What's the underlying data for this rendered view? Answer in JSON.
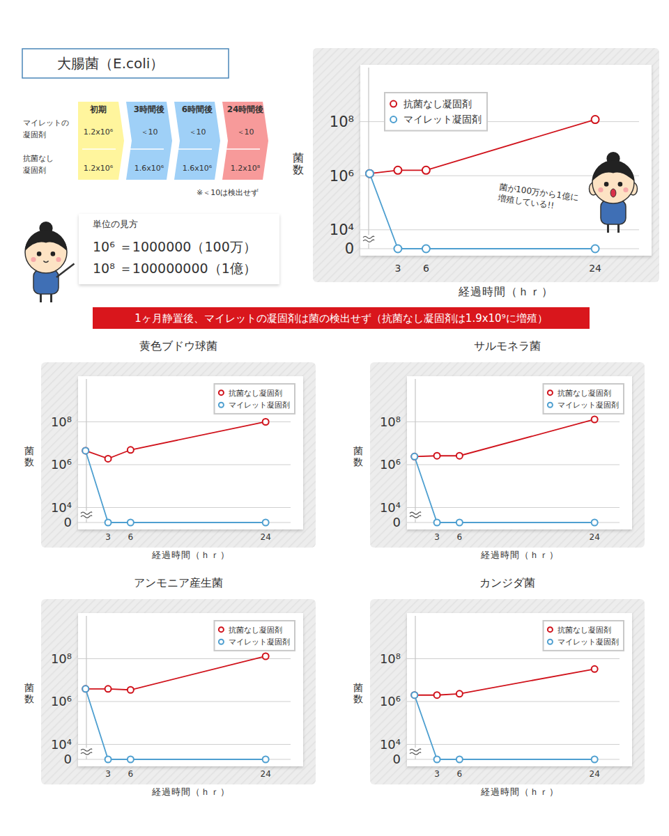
{
  "chart_data": [
    {
      "type": "line",
      "title": "大腸菌（E.coli）",
      "x_label": "経過時間（ｈｒ）",
      "y_label": "菌数",
      "x": [
        0,
        3,
        6,
        24
      ],
      "xlim": [
        -1,
        30
      ],
      "xticks": [
        3,
        6,
        24
      ],
      "ylim": [
        0,
        10000000000
      ],
      "yticks": [
        0,
        {
          "value": 10000,
          "label": "10⁴"
        },
        {
          "value": 1000000,
          "label": "10⁶"
        },
        {
          "value": 100000000,
          "label": "10⁸"
        }
      ],
      "log": "y",
      "grid": true,
      "legend": "upper left",
      "series": [
        {
          "name": "抗菌なし凝固剤",
          "color": "#d0121b",
          "marker": "circle",
          "values": [
            1200000,
            1600000,
            1600000,
            120000000
          ]
        },
        {
          "name": "マイレット凝固剤",
          "color": "#4e9fd0",
          "marker": "circle",
          "values": [
            1200000,
            0,
            0,
            0
          ]
        }
      ],
      "annotations": [
        {
          "text": "菌が100万から1億に増殖している!!"
        }
      ]
    },
    {
      "type": "line",
      "title": "黄色ブドウ球菌",
      "x_label": "経過時間（ｈｒ）",
      "y_label": "菌数",
      "x": [
        0,
        3,
        6,
        24
      ],
      "xlim": [
        -1,
        29
      ],
      "xticks": [
        3,
        6,
        24
      ],
      "ylim": [
        0,
        10000000000
      ],
      "yticks": [
        0,
        {
          "value": 10000,
          "label": "10⁴"
        },
        {
          "value": 1000000,
          "label": "10⁶"
        },
        {
          "value": 100000000,
          "label": "10⁸"
        }
      ],
      "log": "y",
      "grid": true,
      "legend": "upper right",
      "series": [
        {
          "name": "抗菌なし凝固剤",
          "color": "#d0121b",
          "marker": "circle",
          "values": [
            4500000,
            1900000,
            4900000,
            100000000
          ]
        },
        {
          "name": "マイレット凝固剤",
          "color": "#4e9fd0",
          "marker": "circle",
          "values": [
            4500000,
            0,
            0,
            0
          ]
        }
      ]
    },
    {
      "type": "line",
      "title": "サルモネラ菌",
      "x_label": "経過時間（ｈｒ）",
      "y_label": "菌数",
      "x": [
        0,
        3,
        6,
        24
      ],
      "xlim": [
        -1,
        29
      ],
      "xticks": [
        3,
        6,
        24
      ],
      "ylim": [
        0,
        10000000000
      ],
      "yticks": [
        0,
        {
          "value": 10000,
          "label": "10⁴"
        },
        {
          "value": 1000000,
          "label": "10⁶"
        },
        {
          "value": 100000000,
          "label": "10⁸"
        }
      ],
      "log": "y",
      "grid": true,
      "legend": "upper right",
      "series": [
        {
          "name": "抗菌なし凝固剤",
          "color": "#d0121b",
          "marker": "circle",
          "values": [
            2400000,
            2600000,
            2600000,
            130000000
          ]
        },
        {
          "name": "マイレット凝固剤",
          "color": "#4e9fd0",
          "marker": "circle",
          "values": [
            2400000,
            0,
            0,
            0
          ]
        }
      ]
    },
    {
      "type": "line",
      "title": "アンモニア産生菌",
      "x_label": "経過時間（ｈｒ）",
      "y_label": "菌数",
      "x": [
        0,
        3,
        6,
        24
      ],
      "xlim": [
        -1,
        29
      ],
      "xticks": [
        3,
        6,
        24
      ],
      "ylim": [
        0,
        10000000000
      ],
      "yticks": [
        0,
        {
          "value": 10000,
          "label": "10⁴"
        },
        {
          "value": 1000000,
          "label": "10⁶"
        },
        {
          "value": 100000000,
          "label": "10⁸"
        }
      ],
      "log": "y",
      "grid": true,
      "legend": "upper right",
      "series": [
        {
          "name": "抗菌なし凝固剤",
          "color": "#d0121b",
          "marker": "circle",
          "values": [
            3900000,
            3900000,
            3500000,
            130000000
          ]
        },
        {
          "name": "マイレット凝固剤",
          "color": "#4e9fd0",
          "marker": "circle",
          "values": [
            3900000,
            0,
            0,
            0
          ]
        }
      ]
    },
    {
      "type": "line",
      "title": "カンジダ菌",
      "x_label": "経過時間（ｈｒ）",
      "y_label": "菌数",
      "x": [
        0,
        3,
        6,
        24
      ],
      "xlim": [
        -1,
        29
      ],
      "xticks": [
        3,
        6,
        24
      ],
      "ylim": [
        0,
        10000000000
      ],
      "yticks": [
        0,
        {
          "value": 10000,
          "label": "10⁴"
        },
        {
          "value": 1000000,
          "label": "10⁶"
        },
        {
          "value": 100000000,
          "label": "10⁸"
        }
      ],
      "log": "y",
      "grid": true,
      "legend": "upper right",
      "series": [
        {
          "name": "抗菌なし凝固剤",
          "color": "#d0121b",
          "marker": "circle",
          "values": [
            2000000,
            2000000,
            2300000,
            33000000
          ]
        },
        {
          "name": "マイレット凝固剤",
          "color": "#4e9fd0",
          "marker": "circle",
          "values": [
            2000000,
            0,
            0,
            0
          ]
        }
      ]
    }
  ],
  "table": {
    "columns": [
      "初期",
      "3時間後",
      "6時間後",
      "24時間後"
    ],
    "rows": [
      {
        "label_lines": [
          "マイレットの",
          "凝固剤"
        ],
        "cells": [
          "1.2x10⁶",
          "＜10",
          "＜10",
          "＜10"
        ]
      },
      {
        "label_lines": [
          "抗菌なし",
          "凝固剤"
        ],
        "cells": [
          "1.2x10⁶",
          "1.6x10⁶",
          "1.6x10⁶",
          "1.2x10⁸"
        ]
      }
    ],
    "note": "※＜10は検出せず"
  },
  "units": {
    "title": "単位の見方",
    "lines": [
      "10⁶ ＝1000000（100万）",
      "10⁸ ＝100000000（1億）"
    ]
  },
  "banner": "1ヶ月静置後、マイレットの凝固剤は菌の検出せず（抗菌なし凝固剤は1.9x10⁹に増殖）"
}
